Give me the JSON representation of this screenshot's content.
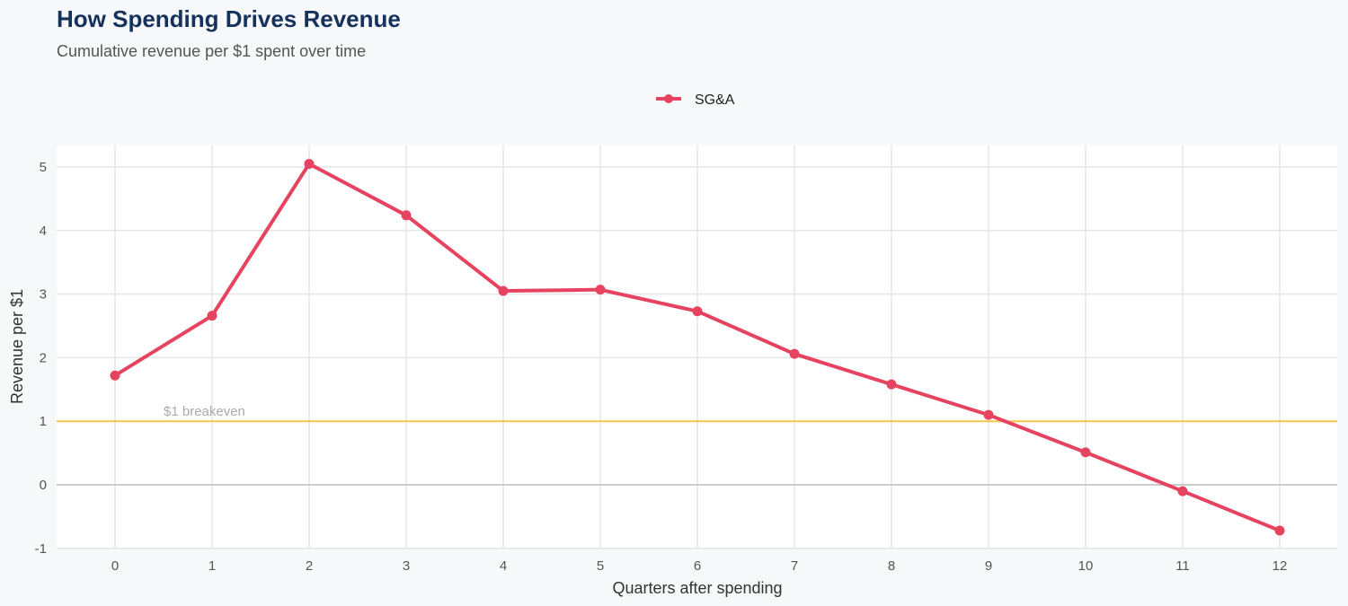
{
  "title": "How Spending Drives Revenue",
  "subtitle": "Cumulative revenue per $1 spent over time",
  "chart_data": {
    "type": "line",
    "title": "How Spending Drives Revenue",
    "subtitle": "Cumulative revenue per $1 spent over time",
    "xlabel": "Quarters after spending",
    "ylabel": "Revenue per $1",
    "x": [
      0,
      1,
      2,
      3,
      4,
      5,
      6,
      7,
      8,
      9,
      10,
      11,
      12
    ],
    "series": [
      {
        "name": "SG&A",
        "color": "#e5435f",
        "values": [
          1.72,
          2.66,
          5.05,
          4.24,
          3.05,
          3.07,
          2.73,
          2.06,
          1.58,
          1.1,
          0.51,
          -0.1,
          -0.72
        ]
      }
    ],
    "xticks": [
      "0",
      "1",
      "2",
      "3",
      "4",
      "5",
      "6",
      "7",
      "8",
      "9",
      "10",
      "11",
      "12"
    ],
    "yticks": [
      "-1",
      "0",
      "1",
      "2",
      "3",
      "4",
      "5"
    ],
    "xlim": [
      -0.6,
      12.6
    ],
    "ylim": [
      -1,
      5.35
    ],
    "grid": true,
    "legend_position": "top",
    "reference_line": {
      "y": 1,
      "label": "$1 breakeven",
      "color": "#f7c54a"
    },
    "zero_line_color": "#cccccc"
  }
}
